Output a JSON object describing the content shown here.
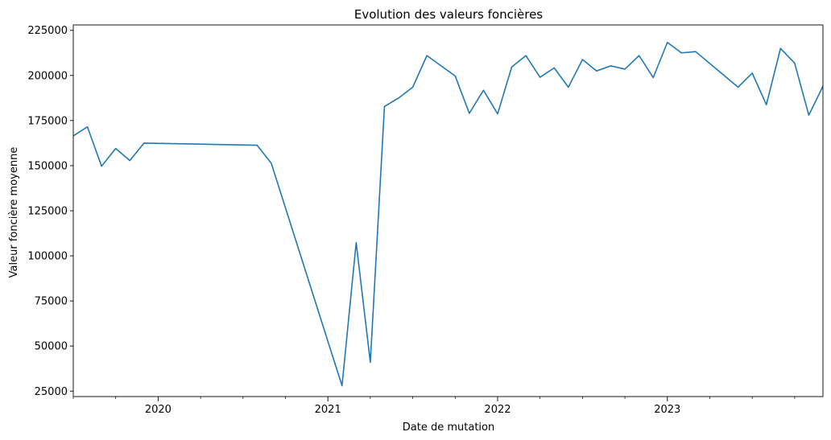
{
  "chart_data": {
    "type": "line",
    "title": "Evolution des valeurs foncières",
    "xlabel": "Date de mutation",
    "ylabel": "Valeur foncière moyenne",
    "x_range": [
      "2019-07",
      "2023-12"
    ],
    "ylim": [
      22000,
      228000
    ],
    "grid": false,
    "legend": "none",
    "x_major_ticks": [
      {
        "month": "2020-01",
        "label": "2020"
      },
      {
        "month": "2021-01",
        "label": "2021"
      },
      {
        "month": "2022-01",
        "label": "2022"
      },
      {
        "month": "2023-01",
        "label": "2023"
      }
    ],
    "x_minor_tick_months": [
      "2019-07",
      "2019-10",
      "2020-04",
      "2020-07",
      "2020-10",
      "2021-04",
      "2021-07",
      "2021-10",
      "2022-04",
      "2022-07",
      "2022-10",
      "2023-04",
      "2023-07",
      "2023-10"
    ],
    "y_ticks": [
      25000,
      50000,
      75000,
      100000,
      125000,
      150000,
      175000,
      200000,
      225000
    ],
    "series": [
      {
        "color": "#1f77b4",
        "points": [
          {
            "x": "2019-07",
            "y": 166500
          },
          {
            "x": "2019-08",
            "y": 171500
          },
          {
            "x": "2019-09",
            "y": 149700
          },
          {
            "x": "2019-10",
            "y": 159500
          },
          {
            "x": "2019-11",
            "y": 152800
          },
          {
            "x": "2019-12",
            "y": 162500
          },
          {
            "x": "2020-08",
            "y": 161300
          },
          {
            "x": "2020-09",
            "y": 151300
          },
          {
            "x": "2021-02",
            "y": 28000
          },
          {
            "x": "2021-03",
            "y": 107300
          },
          {
            "x": "2021-04",
            "y": 41000
          },
          {
            "x": "2021-05",
            "y": 182800
          },
          {
            "x": "2021-06",
            "y": 187500
          },
          {
            "x": "2021-07",
            "y": 193500
          },
          {
            "x": "2021-08",
            "y": 211000
          },
          {
            "x": "2021-10",
            "y": 199700
          },
          {
            "x": "2021-11",
            "y": 179000
          },
          {
            "x": "2021-12",
            "y": 191800
          },
          {
            "x": "2022-01",
            "y": 178700
          },
          {
            "x": "2022-02",
            "y": 204700
          },
          {
            "x": "2022-03",
            "y": 211000
          },
          {
            "x": "2022-04",
            "y": 199000
          },
          {
            "x": "2022-05",
            "y": 204200
          },
          {
            "x": "2022-06",
            "y": 193500
          },
          {
            "x": "2022-07",
            "y": 208800
          },
          {
            "x": "2022-08",
            "y": 202500
          },
          {
            "x": "2022-09",
            "y": 205300
          },
          {
            "x": "2022-10",
            "y": 203500
          },
          {
            "x": "2022-11",
            "y": 211000
          },
          {
            "x": "2022-12",
            "y": 198800
          },
          {
            "x": "2023-01",
            "y": 218300
          },
          {
            "x": "2023-02",
            "y": 212500
          },
          {
            "x": "2023-03",
            "y": 213200
          },
          {
            "x": "2023-06",
            "y": 193500
          },
          {
            "x": "2023-07",
            "y": 201300
          },
          {
            "x": "2023-08",
            "y": 183800
          },
          {
            "x": "2023-09",
            "y": 215000
          },
          {
            "x": "2023-10",
            "y": 206800
          },
          {
            "x": "2023-11",
            "y": 178000
          },
          {
            "x": "2023-12",
            "y": 194000
          }
        ]
      }
    ]
  }
}
